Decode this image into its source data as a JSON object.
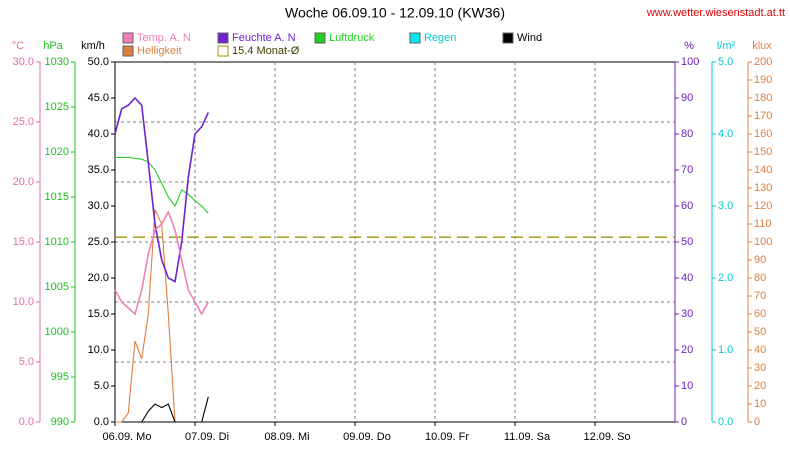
{
  "chart_data": {
    "type": "line",
    "title": "Woche 06.09.10 - 12.09.10 (KW36)",
    "source": "www.wetter.wiesenstadt.at.tt",
    "categories": [
      "06.09. Mo",
      "07.09. Di",
      "08.09. Mi",
      "09.09. Do",
      "10.09. Fr",
      "11.09. Sa",
      "12.09. So"
    ],
    "xlim": [
      0,
      168
    ],
    "x": [
      0,
      2,
      4,
      6,
      8,
      10,
      12,
      14,
      16,
      18,
      20,
      22,
      24,
      26,
      28
    ],
    "grid": true,
    "axes": [
      {
        "label": "°C",
        "color": "#e070a8",
        "lim": [
          0,
          30
        ],
        "ticks": [
          {
            "value": 0,
            "label": "0.0"
          },
          {
            "value": 5,
            "label": "5.0"
          },
          {
            "value": 10,
            "label": "10.0"
          },
          {
            "value": 15,
            "label": "15.0"
          },
          {
            "value": 20,
            "label": "20.0"
          },
          {
            "value": 25,
            "label": "25.0"
          },
          {
            "value": 30,
            "label": "30.0"
          }
        ]
      },
      {
        "label": "hPa",
        "color": "#20c020",
        "lim": [
          990,
          1030
        ],
        "ticks": [
          990,
          995,
          1000,
          1005,
          1010,
          1015,
          1020,
          1025,
          1030
        ]
      },
      {
        "label": "km/h",
        "color": "#000000",
        "lim": [
          0,
          50
        ],
        "ticks": [
          {
            "value": 0,
            "label": "0.0"
          },
          {
            "value": 5,
            "label": "5.0"
          },
          {
            "value": 10,
            "label": "10.0"
          },
          {
            "value": 15,
            "label": "15.0"
          },
          {
            "value": 20,
            "label": "20.0"
          },
          {
            "value": 25,
            "label": "25.0"
          },
          {
            "value": 30,
            "label": "30.0"
          },
          {
            "value": 35,
            "label": "35.0"
          },
          {
            "value": 40,
            "label": "40.0"
          },
          {
            "value": 45,
            "label": "45.0"
          },
          {
            "value": 50,
            "label": "50.0"
          }
        ]
      },
      {
        "label": "%",
        "color": "#7020c0",
        "lim": [
          0,
          100
        ],
        "ticks": [
          0,
          10,
          20,
          30,
          40,
          50,
          60,
          70,
          80,
          90,
          100
        ]
      },
      {
        "label": "l/m²",
        "color": "#00c8d0",
        "lim": [
          0,
          5
        ],
        "ticks": [
          {
            "value": 0,
            "label": "0.0"
          },
          {
            "value": 1,
            "label": "1.0"
          },
          {
            "value": 2,
            "label": "2.0"
          },
          {
            "value": 3,
            "label": "3.0"
          },
          {
            "value": 4,
            "label": "4.0"
          },
          {
            "value": 5,
            "label": "5.0"
          }
        ]
      },
      {
        "label": "klux",
        "color": "#e08040",
        "lim": [
          0,
          200
        ],
        "ticks": [
          0,
          10,
          20,
          30,
          40,
          50,
          60,
          70,
          80,
          90,
          100,
          110,
          120,
          130,
          140,
          150,
          160,
          170,
          180,
          190,
          200
        ]
      }
    ],
    "series": [
      {
        "name": "Temp. A. N",
        "color": "#f080b8",
        "axis": 0,
        "values": [
          11,
          10,
          9.5,
          9,
          11,
          14,
          16,
          16.5,
          17.5,
          16,
          13.5,
          11,
          10,
          9,
          10
        ]
      },
      {
        "name": "Feuchte A. N",
        "color": "#7020d0",
        "axis": 3,
        "values": [
          80,
          87,
          88,
          90,
          88,
          72,
          55,
          45,
          40,
          39,
          50,
          68,
          80,
          82,
          86
        ]
      },
      {
        "name": "Luftdruck",
        "color": "#20d020",
        "axis": 1,
        "values": [
          1019.4,
          1019.4,
          1019.4,
          1019.3,
          1019.2,
          1018.9,
          1018,
          1016.5,
          1015,
          1014,
          1015.8,
          1015.3,
          1014.6,
          1014,
          1013.2
        ]
      },
      {
        "name": "Regen",
        "color": "#00e8f0",
        "axis": 4,
        "values": [
          null,
          null,
          null,
          null,
          null,
          null,
          null,
          null,
          null,
          null,
          null,
          null,
          null,
          null,
          null
        ]
      },
      {
        "name": "Wind",
        "color": "#000000",
        "axis": 2,
        "values": [
          null,
          null,
          null,
          null,
          0,
          1.5,
          2.5,
          2,
          2.5,
          0,
          0,
          null,
          null,
          0,
          3.5
        ]
      },
      {
        "name": "Helligkeit",
        "color": "#e08040",
        "axis": 5,
        "values": [
          0,
          0,
          5,
          45,
          35,
          60,
          118,
          110,
          60,
          0,
          null,
          null,
          null,
          null,
          null
        ]
      }
    ],
    "reference": {
      "name": "15.4 Monat-Ø",
      "value": 15.4,
      "axis": 0,
      "color": "#a09000"
    }
  }
}
